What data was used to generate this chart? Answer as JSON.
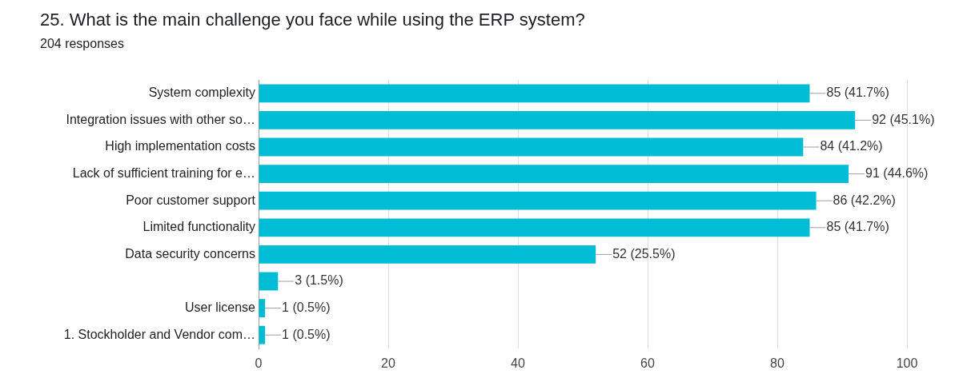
{
  "chart_data": {
    "type": "bar",
    "orientation": "horizontal",
    "title": "25. What is the main challenge you face while using the ERP system?",
    "subtitle": "204 responses",
    "categories": [
      "System complexity",
      "Integration issues with other so…",
      "High implementation costs",
      "Lack of sufficient training for e…",
      "Poor customer support",
      "Limited functionality",
      "Data security concerns",
      null,
      "User license",
      "1. Stockholder and Vendor com…"
    ],
    "values": [
      85,
      92,
      84,
      91,
      86,
      85,
      52,
      3,
      1,
      1
    ],
    "value_labels": [
      "85 (41.7%)",
      "92 (45.1%)",
      "84 (41.2%)",
      "91 (44.6%)",
      "86 (42.2%)",
      "85 (41.7%)",
      "52 (25.5%)",
      "3 (1.5%)",
      "1 (0.5%)",
      "1 (0.5%)"
    ],
    "color": "#00bcd4",
    "xlim": [
      0,
      100
    ],
    "xticks": [
      0,
      20,
      40,
      60,
      80,
      100
    ],
    "grid": "x",
    "legend": false
  }
}
